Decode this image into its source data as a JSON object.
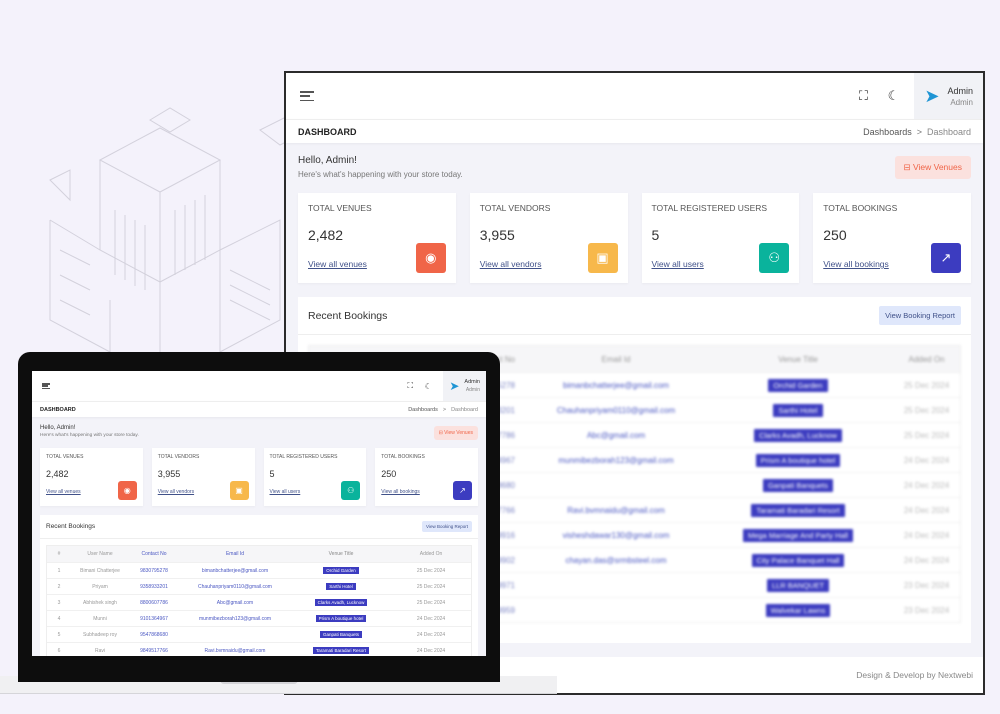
{
  "app": {
    "page_title": "DASHBOARD",
    "breadcrumb": [
      "Dashboards",
      "Dashboard"
    ],
    "breadcrumb_sep": ">",
    "profile": {
      "name": "Admin",
      "role": "Admin"
    },
    "greeting": "Hello, Admin!",
    "subtitle": "Here's what's happening with your store today.",
    "view_venues_button": "View Venues",
    "stats": [
      {
        "label": "TOTAL VENUES",
        "value": "2,482",
        "link": "View all venues",
        "icon": "home-icon",
        "color": "#f06548"
      },
      {
        "label": "TOTAL VENDORS",
        "value": "3,955",
        "link": "View all vendors",
        "icon": "store-icon",
        "color": "#f7b84b"
      },
      {
        "label": "TOTAL REGISTERED USERS",
        "value": "5",
        "link": "View all users",
        "icon": "users-icon",
        "color": "#0ab39c"
      },
      {
        "label": "TOTAL BOOKINGS",
        "value": "250",
        "link": "View all bookings",
        "icon": "chart-icon",
        "color": "#3c3cc0"
      }
    ],
    "recent_bookings_title": "Recent Bookings",
    "booking_report_button": "View Booking Report",
    "table_headers": [
      "#",
      "User Name",
      "Contact No",
      "Email Id",
      "Venue Title",
      "Added On"
    ],
    "rows": [
      {
        "n": "1",
        "user": "Bimani Chatterjee",
        "contact": "9830795278",
        "email": "bimanbchatterjee@gmail.com",
        "venue": "Orchid Garden",
        "date": "25 Dec 2024"
      },
      {
        "n": "2",
        "user": "Priyam",
        "contact": "9358933201",
        "email": "Chauhanpriyam0110@gmail.com",
        "venue": "Sarthi Hotel",
        "date": "25 Dec 2024"
      },
      {
        "n": "3",
        "user": "Abhishek singh",
        "contact": "8800607786",
        "email": "Abc@gmail.com",
        "venue": "Clarks Avadh, Lucknow",
        "date": "25 Dec 2024"
      },
      {
        "n": "4",
        "user": "Munni",
        "contact": "9101364967",
        "email": "munmibezborah123@gmail.com",
        "venue": "Prism A boutique hotel",
        "date": "24 Dec 2024"
      },
      {
        "n": "5",
        "user": "Subhadeep roy",
        "contact": "9547868680",
        "email": "",
        "venue": "Ganpati Banquets",
        "date": "24 Dec 2024"
      },
      {
        "n": "6",
        "user": "Ravi",
        "contact": "9849517766",
        "email": "Ravi.bvmnaidu@gmail.com",
        "venue": "Taramati Baradari Resort",
        "date": "24 Dec 2024"
      },
      {
        "n": "7",
        "user": "",
        "contact": "9999999916",
        "email": "visheshdawar130@gmail.com",
        "venue": "Mega Marriage And Party Hall",
        "date": "24 Dec 2024"
      },
      {
        "n": "8",
        "user": "",
        "contact": "9999999902",
        "email": "chayan.das@srmbsteel.com",
        "venue": "City Palace Banquet Hall",
        "date": "24 Dec 2024"
      },
      {
        "n": "9",
        "user": "",
        "contact": "9999999971",
        "email": "",
        "venue": "LLR BANQUET",
        "date": "23 Dec 2024"
      },
      {
        "n": "10",
        "user": "",
        "contact": "9999999959",
        "email": "",
        "venue": "Walvekar Lawns",
        "date": "23 Dec 2024"
      }
    ],
    "footer": "Design & Develop by Nextwebi"
  }
}
